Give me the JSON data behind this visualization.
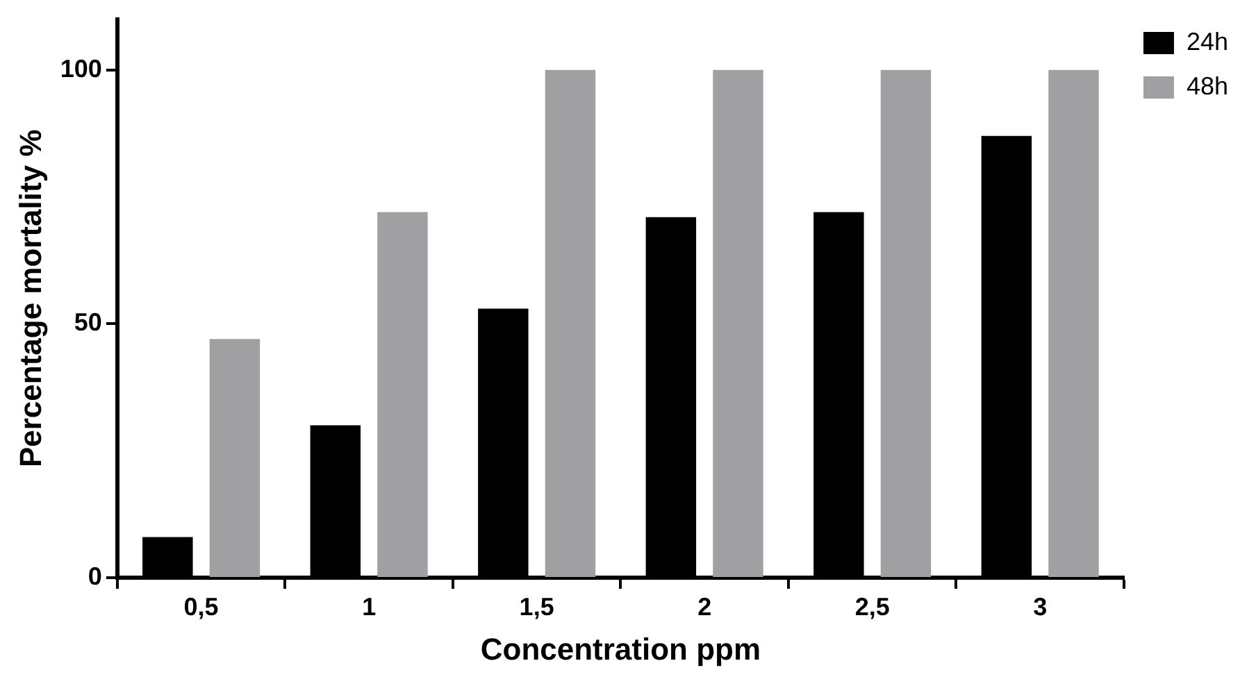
{
  "chart_data": {
    "type": "bar",
    "xlabel": "Concentration ppm",
    "ylabel": "Percentage mortality %",
    "categories": [
      "0,5",
      "1",
      "1,5",
      "2",
      "2,5",
      "3"
    ],
    "series": [
      {
        "name": "24h",
        "color": "#000000",
        "values": [
          8,
          30,
          53,
          71,
          72,
          87
        ]
      },
      {
        "name": "48h",
        "color": "#a0a0a2",
        "values": [
          47,
          72,
          100,
          100,
          100,
          100
        ]
      }
    ],
    "ylim": [
      0,
      110
    ],
    "yticks": [
      0,
      50,
      100
    ],
    "grid": false,
    "legend": "top right"
  }
}
